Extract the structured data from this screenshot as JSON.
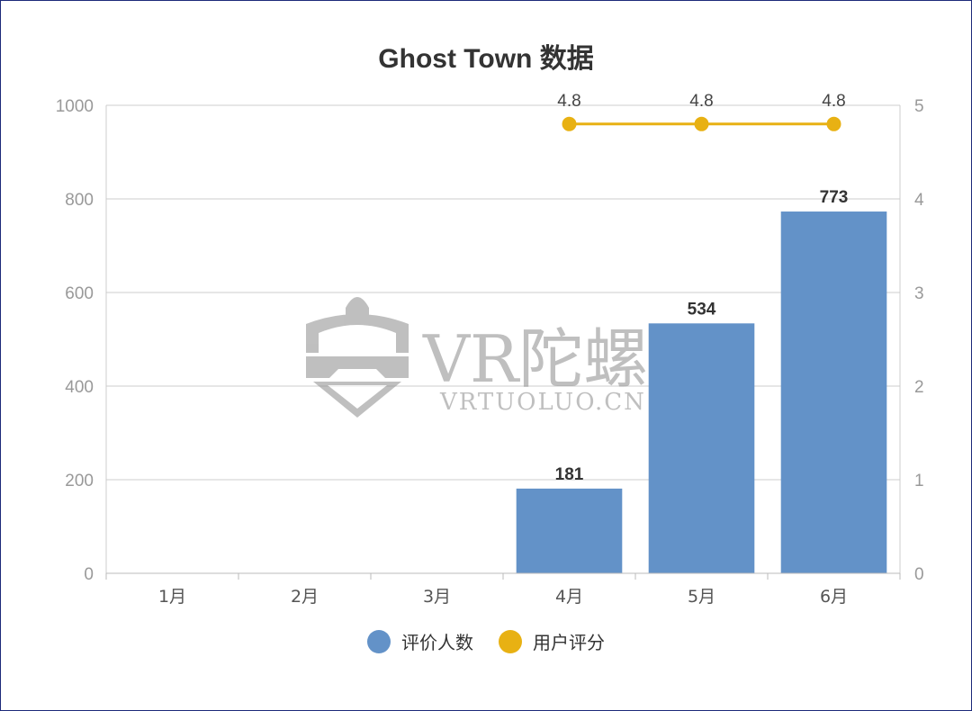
{
  "chart_data": {
    "type": "bar",
    "title": "Ghost Town 数据",
    "categories": [
      "1月",
      "2月",
      "3月",
      "4月",
      "5月",
      "6月"
    ],
    "series": [
      {
        "name": "评价人数",
        "type": "bar",
        "axis": "left",
        "color": "#6392c8",
        "values": [
          null,
          null,
          null,
          181,
          534,
          773
        ]
      },
      {
        "name": "用户评分",
        "type": "line",
        "axis": "right",
        "color": "#e8b113",
        "values": [
          null,
          null,
          null,
          4.8,
          4.8,
          4.8
        ]
      }
    ],
    "y_left": {
      "range": [
        0,
        1000
      ],
      "ticks": [
        0,
        200,
        400,
        600,
        800,
        1000
      ]
    },
    "y_right": {
      "range": [
        0,
        5
      ],
      "ticks": [
        0,
        1,
        2,
        3,
        4,
        5
      ]
    },
    "grid": true,
    "legend_position": "bottom"
  },
  "watermark": {
    "logo_text": "VR陀螺",
    "url_text": "VRTUOLUO.CN"
  }
}
